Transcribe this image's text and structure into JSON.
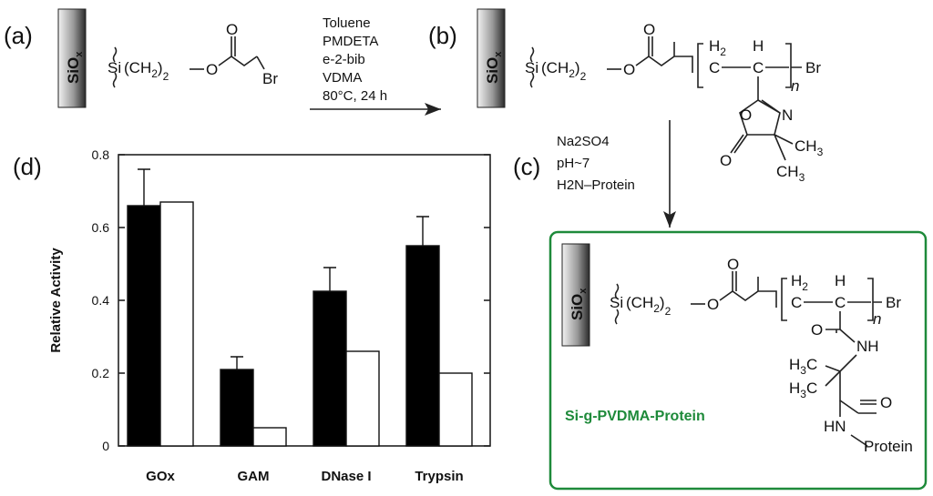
{
  "panels": {
    "a": "(a)",
    "b": "(b)",
    "c": "(c)",
    "d": "(d)"
  },
  "surface_label": {
    "main": "SiO",
    "sub": "x"
  },
  "reaction1": {
    "conditions": [
      "Toluene",
      "PMDETA",
      "e-2-bib",
      "VDMA",
      "80°C, 24 h"
    ]
  },
  "reaction2": {
    "conditions": [
      "Na2SO4",
      "pH~7",
      "H2N–Protein"
    ]
  },
  "chem_text": {
    "Si": "Si",
    "CH2": "(CH",
    "sub2": "2",
    "sub2b": "2",
    "close": ")",
    "O": "O",
    "Br": "Br",
    "C": "C",
    "H": "H",
    "H2": "H",
    "n": "n",
    "N": "N",
    "CH3": "CH",
    "sub3": "3",
    "NH": "NH",
    "H3C": "H",
    "HN": "HN",
    "Protein": "Protein"
  },
  "product_name": "Si-g-PVDMA-Protein",
  "colors": {
    "product_box": "#1e8a3a",
    "bar_filled": "#000000",
    "bar_open": "#ffffff"
  },
  "chart_data": {
    "type": "bar",
    "categories": [
      "GOx",
      "GAM",
      "DNase I",
      "Trypsin"
    ],
    "series": [
      {
        "values": [
          0.66,
          0.21,
          0.425,
          0.55
        ],
        "errors": [
          0.1,
          0.035,
          0.065,
          0.08
        ],
        "fill": "#000000"
      },
      {
        "values": [
          0.67,
          0.05,
          0.26,
          0.2
        ],
        "fill": "#ffffff"
      }
    ],
    "ylabel": "Relative Activity",
    "xlabel": "",
    "yticks": [
      "0",
      "0.2",
      "0.4",
      "0.6",
      "0.8"
    ],
    "ylim": [
      0,
      0.8
    ]
  }
}
